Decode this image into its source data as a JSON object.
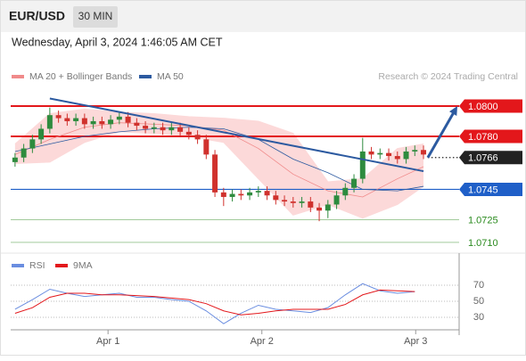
{
  "chart_data": {
    "type": "candlestick",
    "symbol": "EUR/USD",
    "interval": "30 MIN",
    "timestamp": "Wednesday, April 3, 2024 1:46:05 AM CET",
    "source": "Research © 2024 Trading Central",
    "series": [
      {
        "name": "MA 20 + Bollinger Bands",
        "color": "#f08a8a"
      },
      {
        "name": "MA 50",
        "color": "#2c5aa0"
      }
    ],
    "up_color": "#2e8b3e",
    "down_color": "#d0312d",
    "band_color": "#fcd9d9",
    "xlim": [
      -0.5,
      51.1
    ],
    "xticks": [
      {
        "value": 10.7,
        "label": "Apr 1"
      },
      {
        "value": 28.4,
        "label": "Apr 2"
      },
      {
        "value": 46.1,
        "label": "Apr 3"
      }
    ],
    "ylim": [
      1.07035,
      1.08141
    ],
    "candles": [
      [
        1.0763,
        1.0769,
        1.076,
        1.0766
      ],
      [
        1.0766,
        1.0775,
        1.0763,
        1.0772
      ],
      [
        1.0772,
        1.0781,
        1.0769,
        1.0778
      ],
      [
        1.0778,
        1.0788,
        1.0775,
        1.0785
      ],
      [
        1.0785,
        1.0799,
        1.0782,
        1.0794
      ],
      [
        1.0794,
        1.0797,
        1.0789,
        1.0792
      ],
      [
        1.0792,
        1.0795,
        1.0787,
        1.079
      ],
      [
        1.079,
        1.0795,
        1.0787,
        1.0792
      ],
      [
        1.0792,
        1.0795,
        1.0785,
        1.0788
      ],
      [
        1.0788,
        1.0793,
        1.0785,
        1.079
      ],
      [
        1.079,
        1.0793,
        1.0785,
        1.0788
      ],
      [
        1.0788,
        1.0794,
        1.0785,
        1.0791
      ],
      [
        1.0791,
        1.0796,
        1.0788,
        1.0793
      ],
      [
        1.0793,
        1.0796,
        1.0786,
        1.0789
      ],
      [
        1.0789,
        1.0792,
        1.0784,
        1.0787
      ],
      [
        1.0787,
        1.079,
        1.0782,
        1.0785
      ],
      [
        1.0785,
        1.0789,
        1.0782,
        1.0786
      ],
      [
        1.0786,
        1.0789,
        1.0781,
        1.0784
      ],
      [
        1.0784,
        1.0789,
        1.0781,
        1.0786
      ],
      [
        1.0786,
        1.0789,
        1.078,
        1.0783
      ],
      [
        1.0783,
        1.0786,
        1.0778,
        1.0781
      ],
      [
        1.0781,
        1.0784,
        1.0775,
        1.0778
      ],
      [
        1.0778,
        1.0781,
        1.0765,
        1.0768
      ],
      [
        1.0768,
        1.0771,
        1.074,
        1.0743
      ],
      [
        1.0743,
        1.0746,
        1.0734,
        1.074
      ],
      [
        1.074,
        1.0745,
        1.0737,
        1.0742
      ],
      [
        1.0742,
        1.0745,
        1.0738,
        1.0741
      ],
      [
        1.0741,
        1.0746,
        1.0738,
        1.0743
      ],
      [
        1.0743,
        1.0747,
        1.074,
        1.0744
      ],
      [
        1.0744,
        1.0747,
        1.0738,
        1.0741
      ],
      [
        1.0741,
        1.0744,
        1.0735,
        1.0738
      ],
      [
        1.0738,
        1.0741,
        1.0734,
        1.0737
      ],
      [
        1.0737,
        1.074,
        1.0733,
        1.0736
      ],
      [
        1.0736,
        1.074,
        1.0733,
        1.0737
      ],
      [
        1.0737,
        1.074,
        1.073,
        1.0733
      ],
      [
        1.0733,
        1.0736,
        1.0724,
        1.0731
      ],
      [
        1.0731,
        1.0738,
        1.0726,
        1.0735
      ],
      [
        1.0735,
        1.0744,
        1.0732,
        1.0741
      ],
      [
        1.0741,
        1.0749,
        1.0738,
        1.0746
      ],
      [
        1.0746,
        1.0755,
        1.0743,
        1.0752
      ],
      [
        1.0752,
        1.0779,
        1.0749,
        1.077
      ],
      [
        1.077,
        1.0773,
        1.0765,
        1.0768
      ],
      [
        1.0768,
        1.0772,
        1.0765,
        1.0769
      ],
      [
        1.0769,
        1.0772,
        1.0764,
        1.0767
      ],
      [
        1.0767,
        1.077,
        1.0762,
        1.0765
      ],
      [
        1.0765,
        1.0773,
        1.0762,
        1.077
      ],
      [
        1.077,
        1.0774,
        1.0767,
        1.0771
      ],
      [
        1.0771,
        1.0774,
        1.0765,
        1.0768
      ]
    ],
    "ma_x": [
      0,
      4,
      8,
      12,
      16,
      20,
      24,
      28,
      32,
      36,
      40,
      44,
      47
    ],
    "ma20": [
      1.0768,
      1.0778,
      1.0786,
      1.0789,
      1.0788,
      1.0787,
      1.0784,
      1.0772,
      1.0755,
      1.0744,
      1.074,
      1.0752,
      1.076
    ],
    "bb_upper": [
      1.0775,
      1.0795,
      1.0798,
      1.0796,
      1.0795,
      1.0793,
      1.0792,
      1.079,
      1.0782,
      1.075,
      1.0752,
      1.0772,
      1.0775
    ],
    "bb_lower": [
      1.0762,
      1.0763,
      1.0776,
      1.0783,
      1.0782,
      1.078,
      1.0776,
      1.0752,
      1.0728,
      1.0735,
      1.0726,
      1.0735,
      1.0747
    ],
    "ma50": [
      1.077,
      1.0775,
      1.078,
      1.0783,
      1.0785,
      1.0786,
      1.0785,
      1.0778,
      1.0765,
      1.0756,
      1.0745,
      1.0744,
      1.0747
    ],
    "trendline": {
      "x": [
        4,
        47
      ],
      "y": [
        1.0805,
        1.0757
      ],
      "color": "#2c5aa0"
    },
    "arrow": {
      "x": [
        47.5,
        50.9
      ],
      "y": [
        1.0766,
        1.08
      ],
      "color": "#2c5aa0"
    },
    "levels": [
      {
        "value": 1.08,
        "label": "1.0800",
        "color": "#e3171b",
        "boxed": true,
        "dotted": false
      },
      {
        "value": 1.078,
        "label": "1.0780",
        "color": "#e3171b",
        "boxed": true,
        "dotted": false
      },
      {
        "value": 1.0766,
        "label": "1.0766",
        "color": "#222222",
        "boxed": true,
        "dotted": true
      },
      {
        "value": 1.0745,
        "label": "1.0745",
        "color": "#1f5fc8",
        "boxed": true,
        "dotted": false
      },
      {
        "value": 1.0725,
        "label": "1.0725",
        "color": "#2a8a1e",
        "boxed": false,
        "dotted": false
      },
      {
        "value": 1.071,
        "label": "1.0710",
        "color": "#2a8a1e",
        "boxed": false,
        "dotted": false
      }
    ],
    "rsi_ylim": [
      14.4,
      92.2
    ],
    "rsi_yticks": [
      30,
      50,
      70
    ],
    "rsi_x": [
      0,
      2,
      4,
      6,
      8,
      10,
      12,
      14,
      16,
      18,
      20,
      22,
      24,
      26,
      28,
      30,
      32,
      34,
      36,
      38,
      40,
      42,
      44,
      46
    ],
    "rsi_series": [
      {
        "name": "RSI",
        "color": "#6a8de0",
        "values": [
          40,
          52,
          65,
          60,
          56,
          58,
          60,
          55,
          55,
          52,
          50,
          38,
          22,
          35,
          45,
          40,
          38,
          36,
          42,
          58,
          72,
          63,
          60,
          62
        ]
      },
      {
        "name": "9MA",
        "color": "#e3171b",
        "values": [
          35,
          42,
          55,
          60,
          60,
          58,
          58,
          57,
          56,
          54,
          52,
          47,
          38,
          33,
          35,
          38,
          40,
          40,
          40,
          46,
          58,
          64,
          63,
          62
        ]
      }
    ]
  }
}
